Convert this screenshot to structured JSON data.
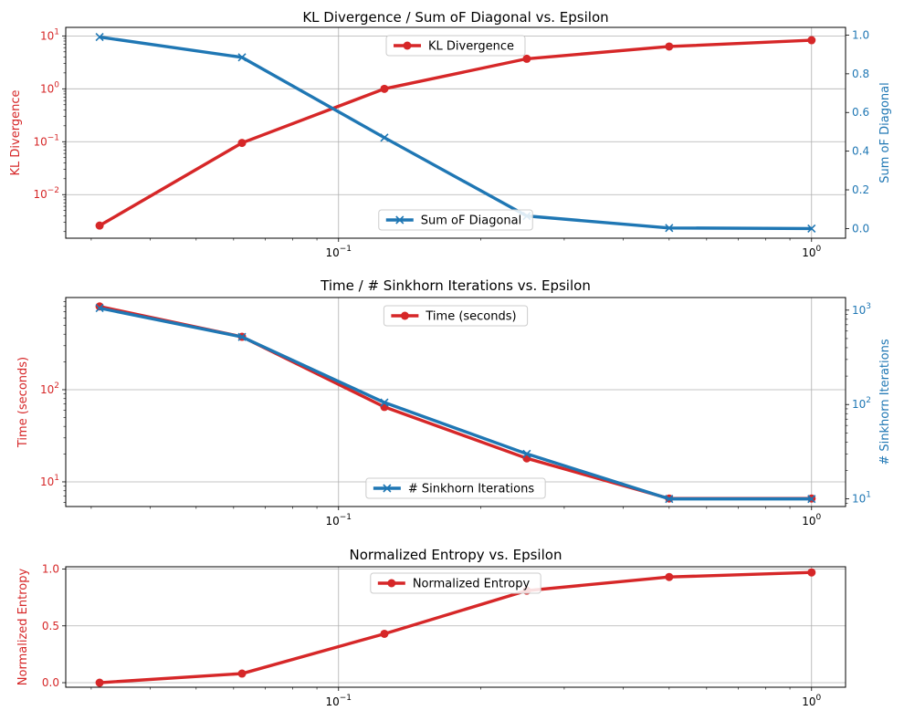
{
  "colors": {
    "red": "#d62728",
    "blue": "#1f77b4",
    "grid": "#b0b0b0",
    "axes": "#000000"
  },
  "chart_data": [
    {
      "type": "line",
      "title": "KL Divergence / Sum oF Diagonal vs. Epsilon",
      "xscale": "log",
      "xlim": [
        0.0265,
        1.18
      ],
      "x": [
        0.03125,
        0.0625,
        0.125,
        0.25,
        0.5,
        1.0
      ],
      "x_ticks": [
        {
          "value": 0.1,
          "label": "10",
          "exp": "−1"
        },
        {
          "value": 1,
          "label": "10",
          "exp": "0"
        }
      ],
      "grid": true,
      "left_axis": {
        "label": "KL Divergence",
        "scale": "log",
        "ylim": [
          0.0015,
          14.5
        ],
        "color": "#d62728",
        "ticks": [
          {
            "value": 0.01,
            "label": "10",
            "exp": "−2"
          },
          {
            "value": 0.1,
            "label": "10",
            "exp": "−1"
          },
          {
            "value": 1,
            "label": "10",
            "exp": "0"
          },
          {
            "value": 10,
            "label": "10",
            "exp": "1"
          }
        ]
      },
      "right_axis": {
        "label": "Sum oF Diagonal",
        "scale": "linear",
        "ylim": [
          -0.05,
          1.04
        ],
        "color": "#1f77b4",
        "ticks": [
          {
            "value": 0.0,
            "label": "0.0"
          },
          {
            "value": 0.2,
            "label": "0.2"
          },
          {
            "value": 0.4,
            "label": "0.4"
          },
          {
            "value": 0.6,
            "label": "0.6"
          },
          {
            "value": 0.8,
            "label": "0.8"
          },
          {
            "value": 1.0,
            "label": "1.0"
          }
        ]
      },
      "series": [
        {
          "name": "KL Divergence",
          "axis": "left",
          "color": "#d62728",
          "marker": "o",
          "values": [
            0.0026,
            0.095,
            1.0,
            3.7,
            6.3,
            8.3
          ],
          "legend": "top-center"
        },
        {
          "name": "Sum oF Diagonal",
          "axis": "right",
          "color": "#1f77b4",
          "marker": "x",
          "values": [
            0.99,
            0.885,
            0.47,
            0.065,
            0.003,
            0.0
          ],
          "legend": "bottom-center"
        }
      ]
    },
    {
      "type": "line",
      "title": "Time / # Sinkhorn Iterations vs. Epsilon",
      "xscale": "log",
      "xlim": [
        0.0265,
        1.18
      ],
      "x": [
        0.03125,
        0.0625,
        0.125,
        0.25,
        0.5,
        1.0
      ],
      "x_ticks": [
        {
          "value": 0.1,
          "label": "10",
          "exp": "−1"
        },
        {
          "value": 1,
          "label": "10",
          "exp": "0"
        }
      ],
      "grid": true,
      "left_axis": {
        "label": "Time (seconds)",
        "scale": "log",
        "ylim": [
          5.4,
          1000
        ],
        "color": "#d62728",
        "ticks": [
          {
            "value": 10,
            "label": "10",
            "exp": "1"
          },
          {
            "value": 100,
            "label": "10",
            "exp": "2"
          }
        ]
      },
      "right_axis": {
        "label": "# Sinkhorn Iterations",
        "scale": "log",
        "ylim": [
          8.3,
          1360
        ],
        "color": "#1f77b4",
        "ticks": [
          {
            "value": 10,
            "label": "10",
            "exp": "1"
          },
          {
            "value": 100,
            "label": "10",
            "exp": "2"
          },
          {
            "value": 1000,
            "label": "10",
            "exp": "3"
          }
        ]
      },
      "series": [
        {
          "name": "Time (seconds)",
          "axis": "left",
          "color": "#d62728",
          "marker": "o",
          "values": [
            800,
            375,
            65,
            18,
            6.6,
            6.6
          ],
          "legend": "top-center"
        },
        {
          "name": "# Sinkhorn Iterations",
          "axis": "right",
          "color": "#1f77b4",
          "marker": "x",
          "values": [
            1050,
            520,
            105,
            30,
            10,
            10
          ],
          "legend": "bottom-center"
        }
      ]
    },
    {
      "type": "line",
      "title": "Normalized Entropy vs. Epsilon",
      "xscale": "log",
      "xlim": [
        0.0265,
        1.18
      ],
      "x": [
        0.03125,
        0.0625,
        0.125,
        0.25,
        0.5,
        1.0
      ],
      "x_ticks": [
        {
          "value": 0.1,
          "label": "10",
          "exp": "−1"
        },
        {
          "value": 1,
          "label": "10",
          "exp": "0"
        }
      ],
      "grid": true,
      "left_axis": {
        "label": "Normalized Entropy",
        "scale": "linear",
        "ylim": [
          -0.04,
          1.02
        ],
        "color": "#d62728",
        "ticks": [
          {
            "value": 0.0,
            "label": "0.0"
          },
          {
            "value": 0.5,
            "label": "0.5"
          },
          {
            "value": 1.0,
            "label": "1.0"
          }
        ]
      },
      "series": [
        {
          "name": "Normalized Entropy",
          "axis": "left",
          "color": "#d62728",
          "marker": "o",
          "values": [
            0.0,
            0.08,
            0.43,
            0.81,
            0.93,
            0.97
          ],
          "legend": "top-center"
        }
      ]
    }
  ]
}
